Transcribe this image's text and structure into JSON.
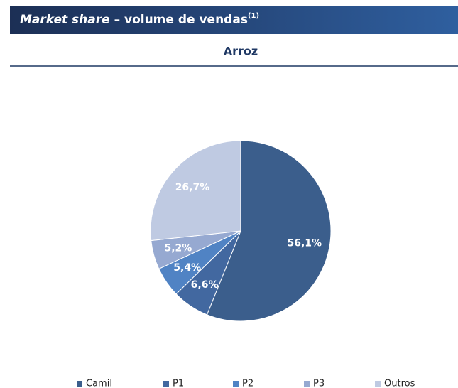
{
  "chart_data": {
    "type": "pie",
    "title": {
      "italic": "Market share",
      "text": "– volume de vendas",
      "superscript": "(1)"
    },
    "subtitle": "Arroz",
    "categories": [
      "Camil",
      "P1",
      "P2",
      "P3",
      "Outros"
    ],
    "values": [
      56.1,
      6.6,
      5.4,
      5.2,
      26.7
    ],
    "value_labels": [
      "56,1%",
      "6,6%",
      "5,4%",
      "5,2%",
      "26,7%"
    ],
    "colors": [
      "#3b5e8c",
      "#4268a0",
      "#5083c4",
      "#96a9d1",
      "#bfcae2"
    ],
    "legend": "bottom"
  }
}
